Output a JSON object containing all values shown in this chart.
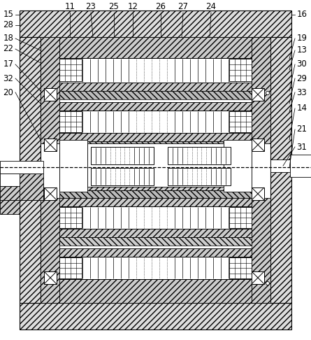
{
  "bg_color": "#ffffff",
  "line_color": "#000000",
  "fig_width": 4.45,
  "fig_height": 4.86,
  "dpi": 100
}
